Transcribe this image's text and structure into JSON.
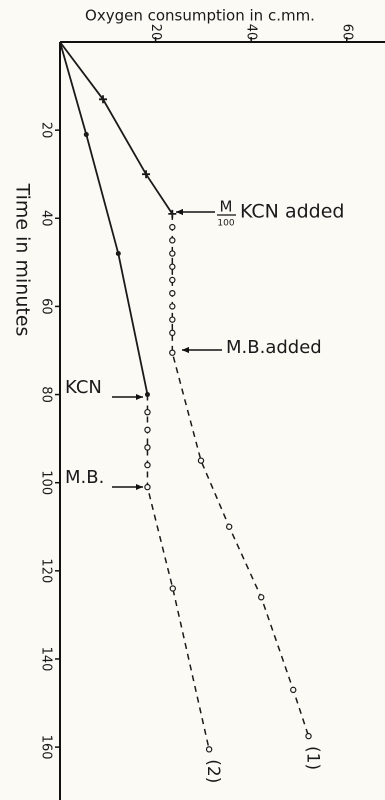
{
  "chart_data": {
    "type": "line",
    "title": "Oxygen consumption in c.mm.",
    "y_label": "Time in minutes",
    "xlim": [
      0,
      68
    ],
    "ylim": [
      0,
      172
    ],
    "xticks": [
      20,
      40,
      60
    ],
    "yticks": [
      20,
      40,
      60,
      80,
      100,
      120,
      140,
      160
    ],
    "series": [
      {
        "name": "(1)",
        "color": "#1a1a1a",
        "marker": "cross",
        "solid": {
          "x": [
            0,
            9,
            18,
            23.5
          ],
          "y": [
            0,
            13,
            30,
            39
          ]
        },
        "dashed": {
          "x": [
            23.5,
            23.5,
            23.5,
            23.5,
            23.5,
            23.5,
            23.5,
            23.5,
            23.5,
            23.5,
            29.5,
            35.4,
            42.1,
            48.8,
            52
          ],
          "y": [
            42,
            45,
            48,
            51,
            54,
            57,
            60,
            63,
            66,
            70.5,
            95,
            110,
            126,
            147,
            157.5
          ]
        }
      },
      {
        "name": "(2)",
        "color": "#1a1a1a",
        "marker": "dot",
        "solid": {
          "x": [
            0,
            5.5,
            12.2,
            18.3
          ],
          "y": [
            0,
            21,
            48,
            80
          ]
        },
        "dashed": {
          "x": [
            18.3,
            18.3,
            18.3,
            18.3,
            18.3,
            23.6,
            31.2
          ],
          "y": [
            84,
            88,
            92,
            96,
            101,
            124,
            160.5
          ]
        }
      }
    ],
    "annotations": [
      {
        "numerator": "M",
        "denominator": "100",
        "text": "KCN added"
      },
      {
        "text": "M.B.added"
      },
      {
        "text": "KCN"
      },
      {
        "text": "M.B."
      }
    ]
  }
}
